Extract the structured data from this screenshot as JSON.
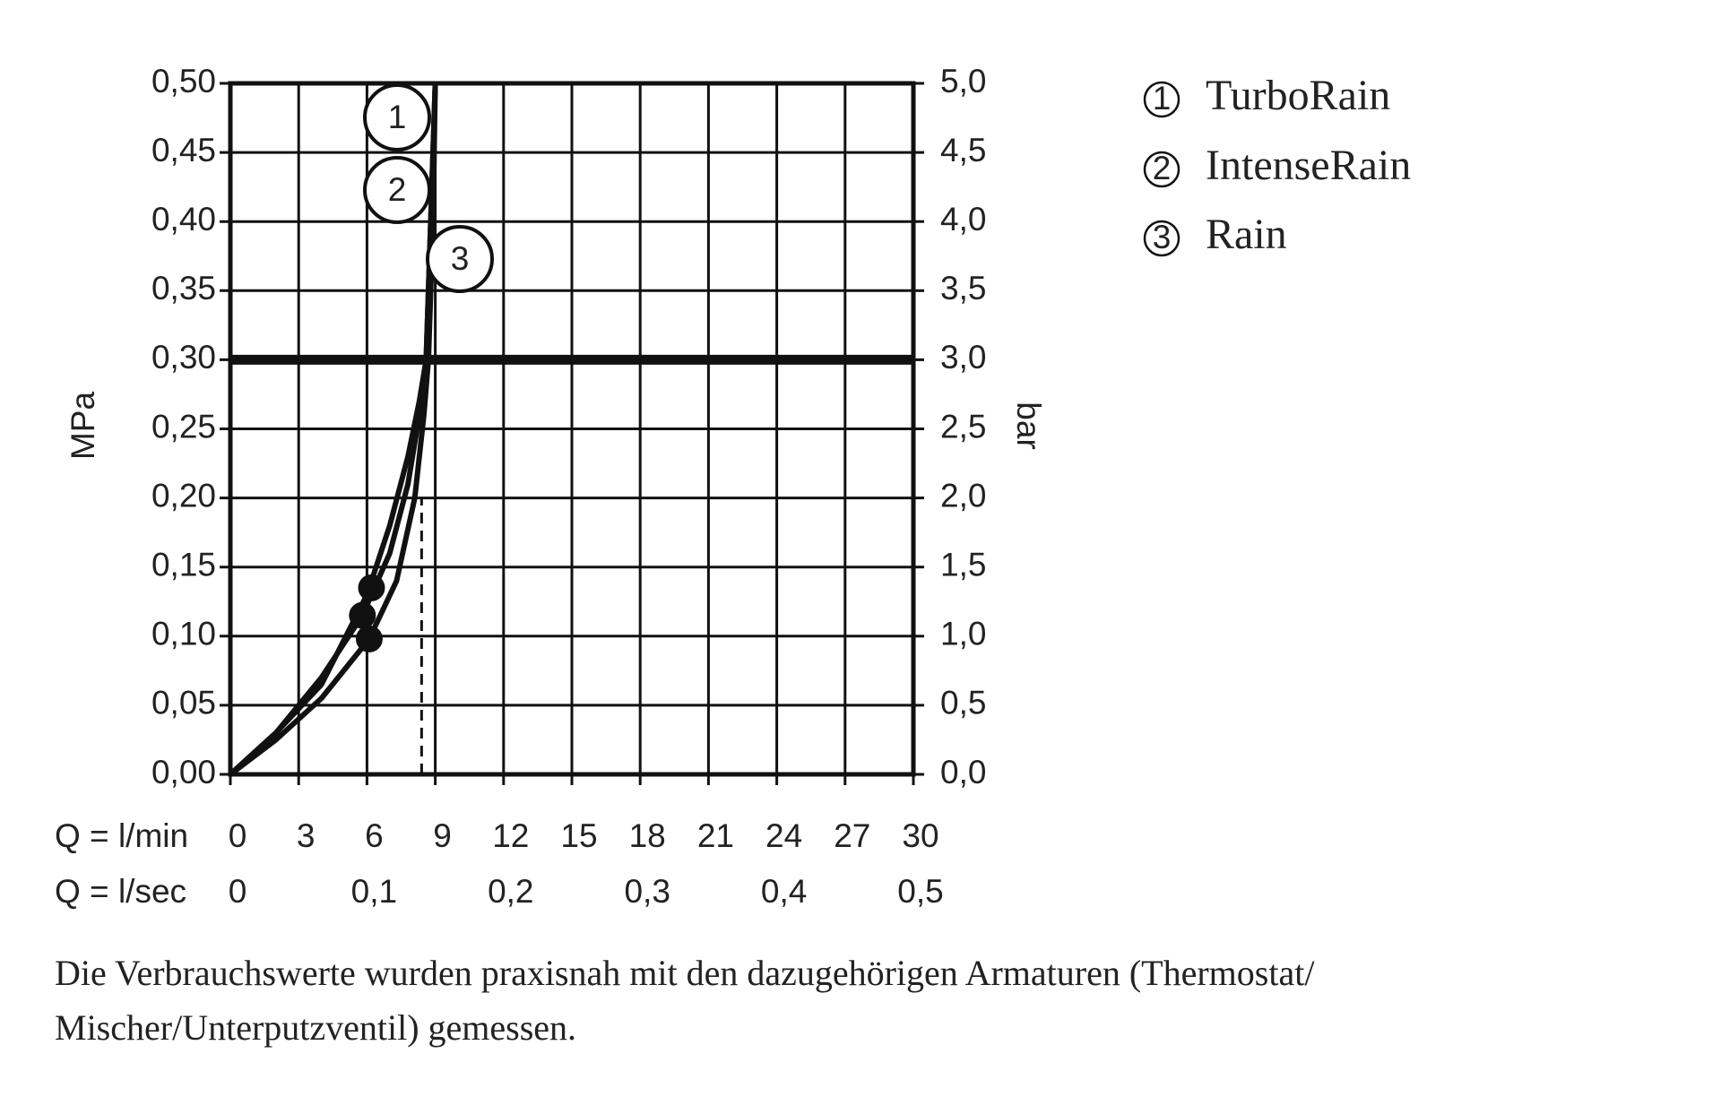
{
  "chart_data": {
    "type": "line",
    "x_label": "Q = l/min",
    "x2_label": "Q = l/sec",
    "y_label": "MPa",
    "y2_label": "bar",
    "xlim": [
      0,
      30
    ],
    "xticks": [
      0,
      3,
      6,
      9,
      12,
      15,
      18,
      21,
      24,
      27,
      30
    ],
    "x2lim": [
      0,
      0.5
    ],
    "x2ticks": [
      0,
      {
        "value": 0.1,
        "label": "0,1"
      },
      {
        "value": 0.2,
        "label": "0,2"
      },
      {
        "value": 0.3,
        "label": "0,3"
      },
      {
        "value": 0.4,
        "label": "0,4"
      },
      {
        "value": 0.5,
        "label": "0,5"
      }
    ],
    "ylim": [
      0,
      0.5
    ],
    "yticks": [
      {
        "value": 0,
        "label": "0,00"
      },
      {
        "value": 0.05,
        "label": "0,05"
      },
      {
        "value": 0.1,
        "label": "0,10"
      },
      {
        "value": 0.15,
        "label": "0,15"
      },
      {
        "value": 0.2,
        "label": "0,20"
      },
      {
        "value": 0.25,
        "label": "0,25"
      },
      {
        "value": 0.3,
        "label": "0,30"
      },
      {
        "value": 0.35,
        "label": "0,35"
      },
      {
        "value": 0.4,
        "label": "0,40"
      },
      {
        "value": 0.45,
        "label": "0,45"
      },
      {
        "value": 0.5,
        "label": "0,50"
      }
    ],
    "y2lim": [
      0,
      5
    ],
    "y2ticks": [
      {
        "value": 0,
        "label": "0,0"
      },
      {
        "value": 0.5,
        "label": "0,5"
      },
      {
        "value": 1,
        "label": "1,0"
      },
      {
        "value": 1.5,
        "label": "1,5"
      },
      {
        "value": 2,
        "label": "2,0"
      },
      {
        "value": 2.5,
        "label": "2,5"
      },
      {
        "value": 3,
        "label": "3,0"
      },
      {
        "value": 3.5,
        "label": "3,5"
      },
      {
        "value": 4,
        "label": "4,0"
      },
      {
        "value": 4.5,
        "label": "4,5"
      },
      {
        "value": 5,
        "label": "5,0"
      }
    ],
    "grid": true,
    "highlight_y": 0.3,
    "reference_x": 8.4,
    "reference_top": 0.2,
    "color": "#111111",
    "series": [
      {
        "label": "1",
        "name": "TurboRain",
        "x": [
          0,
          2,
          4,
          6,
          7,
          7.8,
          8.3,
          8.6,
          8.8,
          9.0
        ],
        "y": [
          0,
          0.03,
          0.065,
          0.13,
          0.18,
          0.23,
          0.27,
          0.3,
          0.4,
          0.5
        ],
        "marker": {
          "x": 6.2,
          "y": 0.135
        }
      },
      {
        "label": "2",
        "name": "IntenseRain",
        "x": [
          0,
          2,
          4,
          5.8,
          7,
          7.8,
          8.3,
          8.6,
          8.8,
          9.0
        ],
        "y": [
          0,
          0.03,
          0.07,
          0.115,
          0.16,
          0.21,
          0.26,
          0.3,
          0.4,
          0.5
        ],
        "marker": {
          "x": 5.8,
          "y": 0.115
        }
      },
      {
        "label": "3",
        "name": "Rain",
        "x": [
          0,
          2,
          4,
          6.1,
          7.3,
          8.1,
          8.5,
          8.7,
          8.9,
          9.0
        ],
        "y": [
          0,
          0.025,
          0.055,
          0.098,
          0.14,
          0.2,
          0.26,
          0.3,
          0.4,
          0.5
        ],
        "marker": {
          "x": 6.1,
          "y": 0.098
        }
      }
    ],
    "note_lines": [
      "Die Verbrauchswerte wurden praxisnah mit den dazugehörigen Armaturen (Thermostat/",
      "Mischer/Unterputzventil) gemessen."
    ]
  }
}
